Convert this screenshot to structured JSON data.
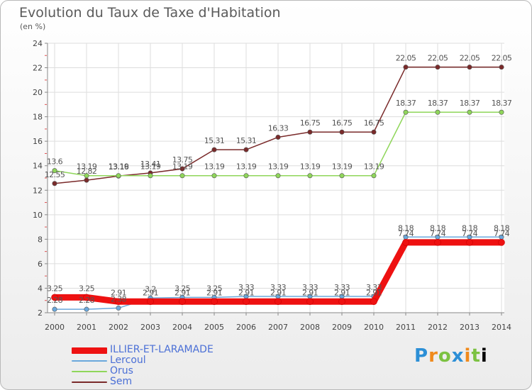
{
  "chart_data": {
    "type": "line",
    "title": "Evolution du Taux de Taxe d'Habitation",
    "subtitle": "(en %)",
    "x": [
      "2000",
      "2001",
      "2002",
      "2003",
      "2004",
      "2005",
      "2006",
      "2007",
      "2008",
      "2009",
      "2010",
      "2011",
      "2012",
      "2013",
      "2014"
    ],
    "ylim": [
      2,
      24
    ],
    "yticks": [
      "2",
      "4",
      "6",
      "8",
      "10",
      "12",
      "14",
      "16",
      "18",
      "20",
      "22",
      "24"
    ],
    "grid": true,
    "legend_position": "bottom-left",
    "series": [
      {
        "name": "ILLIER-ET-LARAMADE",
        "color": "#ee1111",
        "values": [
          3.25,
          3.25,
          2.91,
          2.91,
          2.91,
          2.91,
          2.91,
          2.91,
          2.91,
          2.91,
          2.91,
          7.74,
          7.74,
          7.74,
          7.74
        ],
        "labels": [
          "3.25",
          "3.25",
          "2.91",
          "2.91",
          "2.91",
          "2.91",
          "2.91",
          "2.91",
          "2.91",
          "2.91",
          "2.91",
          "7.74",
          "7.74",
          "7.74",
          "7.74"
        ]
      },
      {
        "name": "Lercoul",
        "color": "#6aa8dc",
        "values": [
          2.28,
          2.28,
          2.38,
          3.2,
          3.25,
          3.25,
          3.33,
          3.33,
          3.33,
          3.33,
          3.33,
          8.18,
          8.18,
          8.18,
          8.18
        ],
        "labels": [
          "2.28",
          "2.28",
          "2.38",
          "3.2",
          "3.25",
          "3.25",
          "3.33",
          "3.33",
          "3.33",
          "3.33",
          "3.33",
          "8.18",
          "8.18",
          "8.18",
          "8.18"
        ]
      },
      {
        "name": "Orus",
        "color": "#8fd65a",
        "values": [
          13.6,
          13.19,
          13.19,
          13.19,
          13.19,
          13.19,
          13.19,
          13.19,
          13.19,
          13.19,
          13.19,
          18.37,
          18.37,
          18.37,
          18.37
        ],
        "labels": [
          "13.6",
          "13.19",
          "13.19",
          "13.19",
          "13.19",
          "13.19",
          "13.19",
          "13.19",
          "13.19",
          "13.19",
          "13.19",
          "18.37",
          "18.37",
          "18.37",
          "18.37"
        ]
      },
      {
        "name": "Sem",
        "color": "#7a2a2a",
        "values": [
          12.55,
          12.82,
          13.16,
          13.41,
          13.75,
          15.31,
          15.31,
          16.33,
          16.75,
          16.75,
          16.75,
          22.05,
          22.05,
          22.05,
          22.05
        ],
        "labels": [
          "12.55",
          "12.82",
          "13.16",
          "13.41",
          "13.75",
          "15.31",
          "15.31",
          "16.33",
          "16.75",
          "16.75",
          "16.75",
          "22.05",
          "22.05",
          "22.05",
          "22.05"
        ]
      }
    ]
  },
  "logo": {
    "letters": [
      "P",
      "r",
      "o",
      "x",
      "i",
      "t"
    ],
    "suffix": "i"
  }
}
